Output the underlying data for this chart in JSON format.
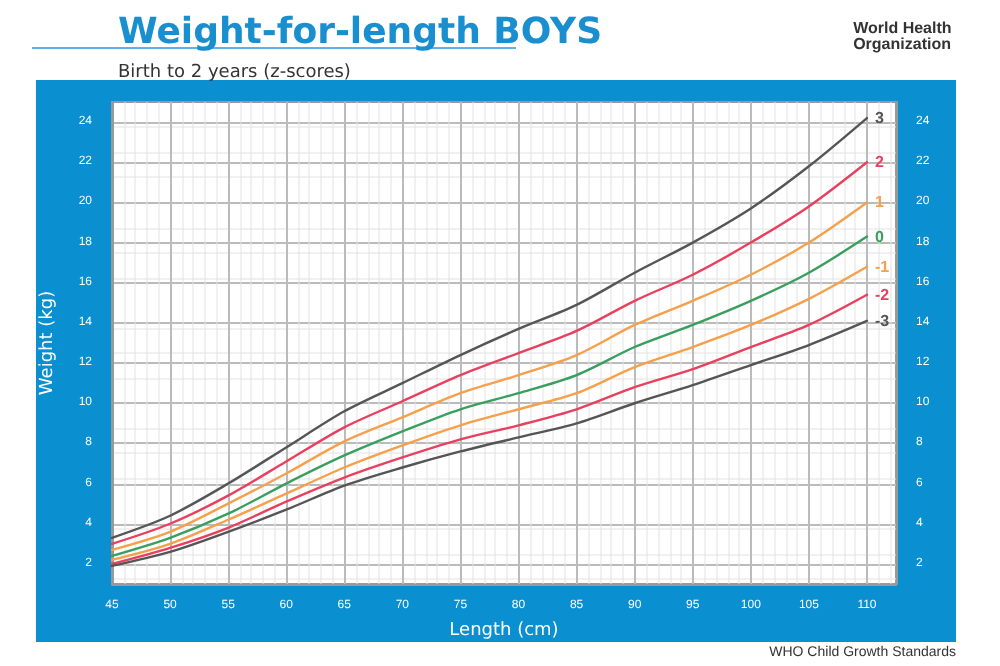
{
  "chart_data": {
    "type": "line",
    "title": "Weight-for-length BOYS",
    "subtitle": "Birth to 2 years (z-scores)",
    "xlabel": "Length (cm)",
    "ylabel": "Weight (kg)",
    "annotations": [
      "World Health Organization",
      "WHO Child Growth Standards"
    ],
    "x": [
      45,
      50,
      55,
      60,
      65,
      70,
      75,
      80,
      85,
      90,
      95,
      100,
      105,
      110
    ],
    "series": [
      {
        "name": "3",
        "color": "#555555",
        "values": [
          3.3,
          4.4,
          6.0,
          7.8,
          9.6,
          11.0,
          12.4,
          13.7,
          14.9,
          16.5,
          18.0,
          19.7,
          21.8,
          24.2
        ]
      },
      {
        "name": "2",
        "color": "#e8405f",
        "values": [
          3.0,
          4.0,
          5.4,
          7.1,
          8.8,
          10.1,
          11.4,
          12.5,
          13.6,
          15.1,
          16.4,
          18.0,
          19.8,
          22.0
        ]
      },
      {
        "name": "1",
        "color": "#f5a04a",
        "values": [
          2.7,
          3.6,
          5.0,
          6.5,
          8.1,
          9.3,
          10.5,
          11.4,
          12.4,
          13.9,
          15.1,
          16.4,
          18.0,
          20.0
        ]
      },
      {
        "name": "0",
        "color": "#3a9f5e",
        "values": [
          2.4,
          3.3,
          4.5,
          6.0,
          7.4,
          8.6,
          9.7,
          10.5,
          11.4,
          12.8,
          13.9,
          15.1,
          16.5,
          18.3
        ]
      },
      {
        "name": "-1",
        "color": "#f5a04a",
        "values": [
          2.2,
          3.0,
          4.2,
          5.5,
          6.8,
          7.9,
          8.9,
          9.7,
          10.5,
          11.8,
          12.8,
          13.9,
          15.2,
          16.8
        ]
      },
      {
        "name": "-2",
        "color": "#e8405f",
        "values": [
          2.0,
          2.8,
          3.8,
          5.1,
          6.3,
          7.3,
          8.2,
          8.9,
          9.7,
          10.8,
          11.7,
          12.8,
          13.9,
          15.4
        ]
      },
      {
        "name": "-3",
        "color": "#555555",
        "values": [
          1.9,
          2.6,
          3.6,
          4.7,
          5.9,
          6.8,
          7.6,
          8.3,
          9.0,
          10.0,
          10.9,
          11.9,
          12.9,
          14.1
        ]
      }
    ],
    "xlim": [
      45,
      112.5
    ],
    "xticks": [
      45,
      50,
      55,
      60,
      65,
      70,
      75,
      80,
      85,
      90,
      95,
      100,
      105,
      110
    ],
    "ylim": [
      1,
      25
    ],
    "yticks": [
      2,
      4,
      6,
      8,
      10,
      12,
      14,
      16,
      18,
      20,
      22,
      24
    ],
    "y2lim": [
      1,
      25
    ],
    "y2ticks": [
      2,
      4,
      6,
      8,
      10,
      12,
      14,
      16,
      18,
      20,
      22,
      24
    ],
    "grid": true,
    "legend": false,
    "marker": "none",
    "line_style": "solid"
  }
}
